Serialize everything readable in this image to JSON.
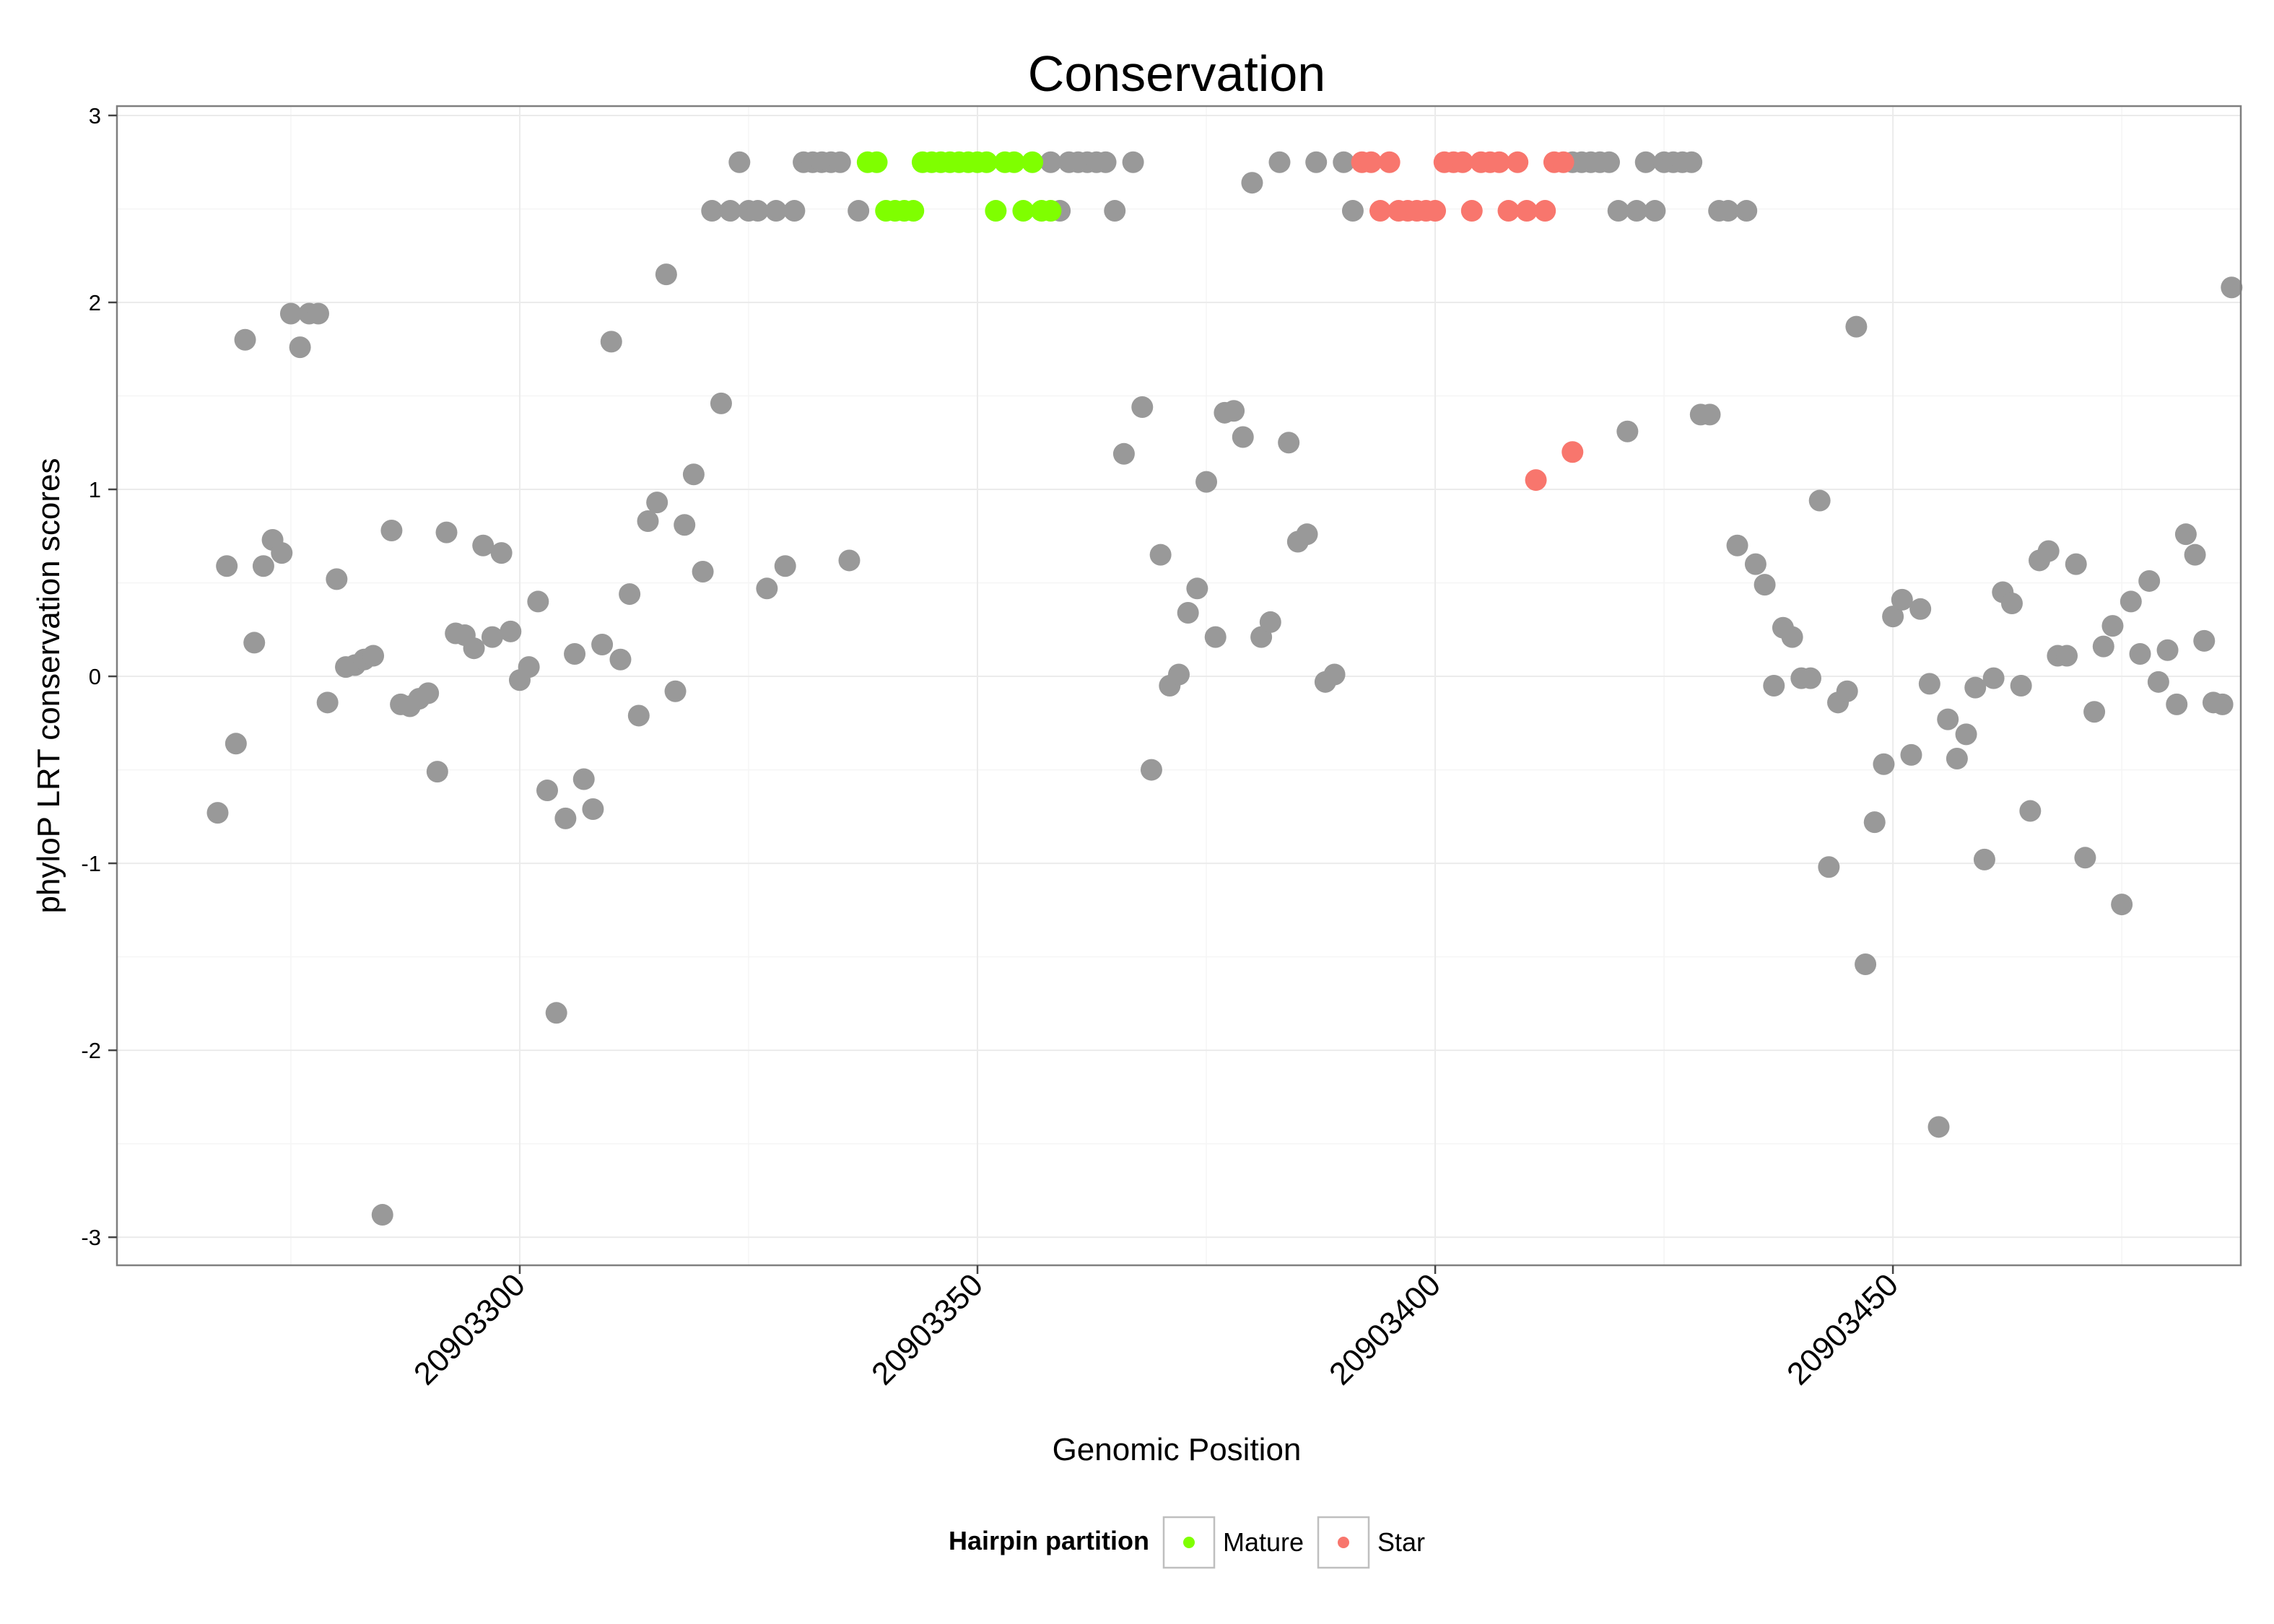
{
  "chart_data": {
    "type": "scatter",
    "title": "Conservation",
    "xlabel": "Genomic Position",
    "ylabel": "phyloP LRT conservation scores",
    "xlim": [
      20903256,
      20903488
    ],
    "ylim": [
      -3.15,
      3.05
    ],
    "x_ticks": [
      20903300,
      20903350,
      20903400,
      20903450
    ],
    "x_tick_labels": [
      "20903300",
      "20903350",
      "20903400",
      "20903450"
    ],
    "y_ticks": [
      -3,
      -2,
      -1,
      0,
      1,
      2,
      3
    ],
    "y_tick_labels": [
      "-3",
      "-2",
      "-1",
      "0",
      "1",
      "2",
      "3"
    ],
    "grid": true,
    "legend": {
      "title": "Hairpin partition",
      "position": "bottom",
      "entries": [
        {
          "name": "Mature",
          "color": "#7FFF00"
        },
        {
          "name": "Star",
          "color": "#F8766D"
        }
      ]
    },
    "colors": {
      "Other": "#999999",
      "Mature": "#7FFF00",
      "Star": "#F8766D"
    },
    "series": [
      {
        "name": "Other",
        "points": [
          [
            20903267,
            -0.73
          ],
          [
            20903268,
            0.59
          ],
          [
            20903269,
            -0.36
          ],
          [
            20903270,
            1.8
          ],
          [
            20903271,
            0.18
          ],
          [
            20903272,
            0.59
          ],
          [
            20903273,
            0.73
          ],
          [
            20903274,
            0.66
          ],
          [
            20903275,
            1.94
          ],
          [
            20903276,
            1.76
          ],
          [
            20903277,
            1.94
          ],
          [
            20903278,
            1.94
          ],
          [
            20903279,
            -0.14
          ],
          [
            20903280,
            0.52
          ],
          [
            20903281,
            0.05
          ],
          [
            20903282,
            0.06
          ],
          [
            20903283,
            0.09
          ],
          [
            20903284,
            0.11
          ],
          [
            20903285,
            -2.88
          ],
          [
            20903286,
            0.78
          ],
          [
            20903287,
            -0.15
          ],
          [
            20903288,
            -0.16
          ],
          [
            20903289,
            -0.12
          ],
          [
            20903290,
            -0.09
          ],
          [
            20903291,
            -0.51
          ],
          [
            20903292,
            0.77
          ],
          [
            20903293,
            0.23
          ],
          [
            20903294,
            0.22
          ],
          [
            20903295,
            0.15
          ],
          [
            20903296,
            0.7
          ],
          [
            20903297,
            0.21
          ],
          [
            20903298,
            0.66
          ],
          [
            20903299,
            0.24
          ],
          [
            20903300,
            -0.02
          ],
          [
            20903301,
            0.05
          ],
          [
            20903302,
            0.4
          ],
          [
            20903303,
            -0.61
          ],
          [
            20903304,
            -1.8
          ],
          [
            20903305,
            -0.76
          ],
          [
            20903306,
            0.12
          ],
          [
            20903307,
            -0.55
          ],
          [
            20903308,
            -0.71
          ],
          [
            20903309,
            0.17
          ],
          [
            20903310,
            1.79
          ],
          [
            20903311,
            0.09
          ],
          [
            20903312,
            0.44
          ],
          [
            20903313,
            -0.21
          ],
          [
            20903314,
            0.83
          ],
          [
            20903315,
            0.93
          ],
          [
            20903316,
            2.15
          ],
          [
            20903317,
            -0.08
          ],
          [
            20903318,
            0.81
          ],
          [
            20903319,
            1.08
          ],
          [
            20903320,
            0.56
          ],
          [
            20903321,
            2.49
          ],
          [
            20903322,
            1.46
          ],
          [
            20903323,
            2.49
          ],
          [
            20903324,
            2.75
          ],
          [
            20903325,
            2.49
          ],
          [
            20903326,
            2.49
          ],
          [
            20903327,
            0.47
          ],
          [
            20903328,
            2.49
          ],
          [
            20903329,
            0.59
          ],
          [
            20903330,
            2.49
          ],
          [
            20903331,
            2.75
          ],
          [
            20903332,
            2.75
          ],
          [
            20903333,
            2.75
          ],
          [
            20903334,
            2.75
          ],
          [
            20903335,
            2.75
          ],
          [
            20903336,
            0.62
          ],
          [
            20903337,
            2.49
          ],
          [
            20903358,
            2.75
          ],
          [
            20903359,
            2.49
          ],
          [
            20903360,
            2.75
          ],
          [
            20903361,
            2.75
          ],
          [
            20903362,
            2.75
          ],
          [
            20903363,
            2.75
          ],
          [
            20903364,
            2.75
          ],
          [
            20903365,
            2.49
          ],
          [
            20903366,
            1.19
          ],
          [
            20903367,
            2.75
          ],
          [
            20903368,
            1.44
          ],
          [
            20903369,
            -0.5
          ],
          [
            20903370,
            0.65
          ],
          [
            20903371,
            -0.05
          ],
          [
            20903372,
            0.01
          ],
          [
            20903373,
            0.34
          ],
          [
            20903374,
            0.47
          ],
          [
            20903375,
            1.04
          ],
          [
            20903376,
            0.21
          ],
          [
            20903377,
            1.41
          ],
          [
            20903378,
            1.42
          ],
          [
            20903379,
            1.28
          ],
          [
            20903380,
            2.64
          ],
          [
            20903381,
            0.21
          ],
          [
            20903382,
            0.29
          ],
          [
            20903383,
            2.75
          ],
          [
            20903384,
            1.25
          ],
          [
            20903385,
            0.72
          ],
          [
            20903386,
            0.76
          ],
          [
            20903387,
            2.75
          ],
          [
            20903388,
            -0.03
          ],
          [
            20903389,
            0.01
          ],
          [
            20903390,
            2.75
          ],
          [
            20903391,
            2.49
          ],
          [
            20903415,
            2.75
          ],
          [
            20903416,
            2.75
          ],
          [
            20903417,
            2.75
          ],
          [
            20903418,
            2.75
          ],
          [
            20903419,
            2.75
          ],
          [
            20903420,
            2.49
          ],
          [
            20903421,
            1.31
          ],
          [
            20903422,
            2.49
          ],
          [
            20903423,
            2.75
          ],
          [
            20903424,
            2.49
          ],
          [
            20903425,
            2.75
          ],
          [
            20903426,
            2.75
          ],
          [
            20903427,
            2.75
          ],
          [
            20903428,
            2.75
          ],
          [
            20903429,
            1.4
          ],
          [
            20903430,
            1.4
          ],
          [
            20903431,
            2.49
          ],
          [
            20903432,
            2.49
          ],
          [
            20903433,
            0.7
          ],
          [
            20903434,
            2.49
          ],
          [
            20903435,
            0.6
          ],
          [
            20903436,
            0.49
          ],
          [
            20903437,
            -0.05
          ],
          [
            20903438,
            0.26
          ],
          [
            20903439,
            0.21
          ],
          [
            20903440,
            -0.01
          ],
          [
            20903441,
            -0.01
          ],
          [
            20903442,
            0.94
          ],
          [
            20903443,
            -1.02
          ],
          [
            20903444,
            -0.14
          ],
          [
            20903445,
            -0.08
          ],
          [
            20903446,
            1.87
          ],
          [
            20903447,
            -1.54
          ],
          [
            20903448,
            -0.78
          ],
          [
            20903449,
            -0.47
          ],
          [
            20903450,
            0.32
          ],
          [
            20903451,
            0.41
          ],
          [
            20903452,
            -0.42
          ],
          [
            20903453,
            0.36
          ],
          [
            20903454,
            -0.04
          ],
          [
            20903455,
            -2.41
          ],
          [
            20903456,
            -0.23
          ],
          [
            20903457,
            -0.44
          ],
          [
            20903458,
            -0.31
          ],
          [
            20903459,
            -0.06
          ],
          [
            20903460,
            -0.98
          ],
          [
            20903461,
            -0.01
          ],
          [
            20903462,
            0.45
          ],
          [
            20903463,
            0.39
          ],
          [
            20903464,
            -0.05
          ],
          [
            20903465,
            -0.72
          ],
          [
            20903466,
            0.62
          ],
          [
            20903467,
            0.67
          ],
          [
            20903468,
            0.11
          ],
          [
            20903469,
            0.11
          ],
          [
            20903470,
            0.6
          ],
          [
            20903471,
            -0.97
          ],
          [
            20903472,
            -0.19
          ],
          [
            20903473,
            0.16
          ],
          [
            20903474,
            0.27
          ],
          [
            20903475,
            -1.22
          ],
          [
            20903476,
            0.4
          ],
          [
            20903477,
            0.12
          ],
          [
            20903478,
            0.51
          ],
          [
            20903479,
            -0.03
          ],
          [
            20903480,
            0.14
          ],
          [
            20903481,
            -0.15
          ],
          [
            20903482,
            0.76
          ],
          [
            20903483,
            0.65
          ],
          [
            20903484,
            0.19
          ],
          [
            20903485,
            -0.14
          ],
          [
            20903486,
            -0.15
          ],
          [
            20903487,
            2.08
          ]
        ]
      },
      {
        "name": "Mature",
        "points": [
          [
            20903338,
            2.75
          ],
          [
            20903339,
            2.75
          ],
          [
            20903340,
            2.49
          ],
          [
            20903341,
            2.49
          ],
          [
            20903342,
            2.49
          ],
          [
            20903343,
            2.49
          ],
          [
            20903344,
            2.75
          ],
          [
            20903345,
            2.75
          ],
          [
            20903346,
            2.75
          ],
          [
            20903347,
            2.75
          ],
          [
            20903348,
            2.75
          ],
          [
            20903349,
            2.75
          ],
          [
            20903350,
            2.75
          ],
          [
            20903351,
            2.75
          ],
          [
            20903352,
            2.49
          ],
          [
            20903353,
            2.75
          ],
          [
            20903354,
            2.75
          ],
          [
            20903355,
            2.49
          ],
          [
            20903356,
            2.75
          ],
          [
            20903357,
            2.49
          ],
          [
            20903358,
            2.49
          ]
        ]
      },
      {
        "name": "Star",
        "points": [
          [
            20903392,
            2.75
          ],
          [
            20903393,
            2.75
          ],
          [
            20903394,
            2.49
          ],
          [
            20903395,
            2.75
          ],
          [
            20903396,
            2.49
          ],
          [
            20903397,
            2.49
          ],
          [
            20903398,
            2.49
          ],
          [
            20903399,
            2.49
          ],
          [
            20903400,
            2.49
          ],
          [
            20903401,
            2.75
          ],
          [
            20903402,
            2.75
          ],
          [
            20903403,
            2.75
          ],
          [
            20903404,
            2.49
          ],
          [
            20903405,
            2.75
          ],
          [
            20903406,
            2.75
          ],
          [
            20903407,
            2.75
          ],
          [
            20903408,
            2.49
          ],
          [
            20903409,
            2.75
          ],
          [
            20903410,
            2.49
          ],
          [
            20903411,
            1.05
          ],
          [
            20903412,
            2.49
          ],
          [
            20903413,
            2.75
          ],
          [
            20903414,
            2.75
          ],
          [
            20903415,
            1.2
          ]
        ]
      }
    ]
  }
}
